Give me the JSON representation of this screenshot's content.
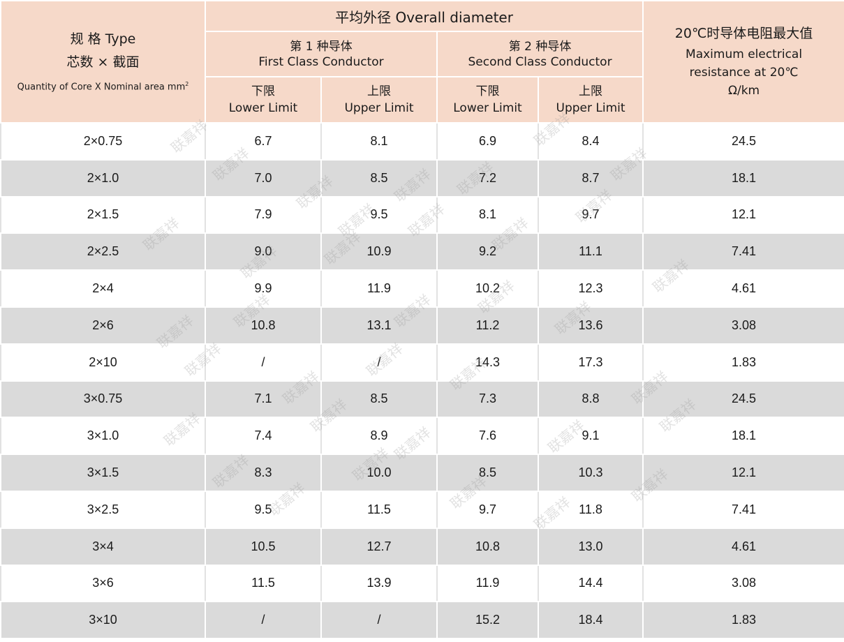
{
  "header": {
    "type_label_1": "规 格 Type",
    "type_label_2": "芯数 × 截面",
    "type_label_3": "Quantity of Core X Nominal area mm",
    "type_label_sup": "2",
    "overall_diameter": "平均外径 Overall diameter",
    "first_class_cn": "第 1 种导体",
    "first_class_en": "First Class Conductor",
    "second_class_cn": "第 2 种导体",
    "second_class_en": "Second Class Conductor",
    "lower_cn": "下限",
    "lower_en": "Lower Limit",
    "upper_cn": "上限",
    "upper_en": "Upper Limit",
    "resistance_cn": "20℃时导体电阻最大值",
    "resistance_en_1": "Maximum electrical",
    "resistance_en_2": "resistance at 20℃",
    "resistance_unit": "Ω/km"
  },
  "rows": [
    [
      "2×0.75",
      "6.7",
      "8.1",
      "6.9",
      "8.4",
      "24.5"
    ],
    [
      "2×1.0",
      "7.0",
      "8.5",
      "7.2",
      "8.7",
      "18.1"
    ],
    [
      "2×1.5",
      "7.9",
      "9.5",
      "8.1",
      "9.7",
      "12.1"
    ],
    [
      "2×2.5",
      "9.0",
      "10.9",
      "9.2",
      "11.1",
      "7.41"
    ],
    [
      "2×4",
      "9.9",
      "11.9",
      "10.2",
      "12.3",
      "4.61"
    ],
    [
      "2×6",
      "10.8",
      "13.1",
      "11.2",
      "13.6",
      "3.08"
    ],
    [
      "2×10",
      "/",
      "/",
      "14.3",
      "17.3",
      "1.83"
    ],
    [
      "3×0.75",
      "7.1",
      "8.5",
      "7.3",
      "8.8",
      "24.5"
    ],
    [
      "3×1.0",
      "7.4",
      "8.9",
      "7.6",
      "9.1",
      "18.1"
    ],
    [
      "3×1.5",
      "8.3",
      "10.0",
      "8.5",
      "10.3",
      "12.1"
    ],
    [
      "3×2.5",
      "9.5",
      "11.5",
      "9.7",
      "11.8",
      "7.41"
    ],
    [
      "3×4",
      "10.5",
      "12.7",
      "10.8",
      "13.0",
      "4.61"
    ],
    [
      "3×6",
      "11.5",
      "13.9",
      "11.9",
      "14.4",
      "3.08"
    ],
    [
      "3×10",
      "/",
      "/",
      "15.2",
      "18.4",
      "1.83"
    ]
  ],
  "watermark": "联嘉祥",
  "colors": {
    "header_bg": "#f6d9c9",
    "stripe_bg": "#dadada"
  }
}
